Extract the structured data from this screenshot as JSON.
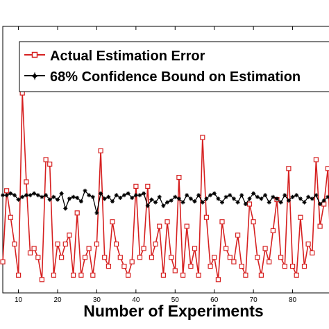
{
  "chart_data": {
    "type": "line",
    "title": "",
    "xlabel": "Number of Experiments",
    "ylabel": "",
    "xlim": [
      6,
      90
    ],
    "ylim": [
      0,
      300
    ],
    "grid": false,
    "legend_position": "top-left",
    "x_ticks": [
      10,
      20,
      30,
      40,
      50,
      60,
      70,
      80
    ],
    "x_tick_labels": [
      "10",
      "20",
      "30",
      "40",
      "50",
      "60",
      "70",
      "80"
    ],
    "series": [
      {
        "name": "Actual Estimation Error",
        "color": "#d62020",
        "marker": "square",
        "x": [
          6,
          7,
          8,
          9,
          10,
          11,
          12,
          13,
          14,
          15,
          16,
          17,
          18,
          19,
          20,
          21,
          22,
          23,
          24,
          25,
          26,
          27,
          28,
          29,
          30,
          31,
          32,
          33,
          34,
          35,
          36,
          37,
          38,
          39,
          40,
          41,
          42,
          43,
          44,
          45,
          46,
          47,
          48,
          49,
          50,
          51,
          52,
          53,
          54,
          55,
          56,
          57,
          58,
          59,
          60,
          61,
          62,
          63,
          64,
          65,
          66,
          67,
          68,
          69,
          70,
          71,
          72,
          73,
          74,
          75,
          76,
          77,
          78,
          79,
          80,
          81,
          82,
          83,
          84,
          85,
          86,
          87,
          88,
          89,
          90
        ],
        "y": [
          35,
          115,
          85,
          55,
          20,
          225,
          125,
          45,
          50,
          40,
          15,
          150,
          145,
          20,
          55,
          40,
          55,
          65,
          20,
          90,
          20,
          40,
          50,
          20,
          55,
          160,
          40,
          30,
          80,
          55,
          40,
          30,
          20,
          35,
          120,
          40,
          50,
          120,
          40,
          55,
          75,
          20,
          80,
          40,
          25,
          130,
          20,
          75,
          30,
          50,
          20,
          175,
          85,
          30,
          40,
          15,
          80,
          50,
          40,
          35,
          65,
          30,
          20,
          100,
          80,
          40,
          20,
          50,
          35,
          70,
          105,
          40,
          30,
          140,
          30,
          20,
          85,
          30,
          55,
          45,
          150,
          75,
          100,
          140,
          5
        ]
      },
      {
        "name": "68% Confidence Bound on Estimation",
        "color": "#000000",
        "marker": "star",
        "x": [
          6,
          7,
          8,
          9,
          10,
          11,
          12,
          13,
          14,
          15,
          16,
          17,
          18,
          19,
          20,
          21,
          22,
          23,
          24,
          25,
          26,
          27,
          28,
          29,
          30,
          31,
          32,
          33,
          34,
          35,
          36,
          37,
          38,
          39,
          40,
          41,
          42,
          43,
          44,
          45,
          46,
          47,
          48,
          49,
          50,
          51,
          52,
          53,
          54,
          55,
          56,
          57,
          58,
          59,
          60,
          61,
          62,
          63,
          64,
          65,
          66,
          67,
          68,
          69,
          70,
          71,
          72,
          73,
          74,
          75,
          76,
          77,
          78,
          79,
          80,
          81,
          82,
          83,
          84,
          85,
          86,
          87,
          88,
          89,
          90
        ],
        "y": [
          110,
          110,
          112,
          110,
          105,
          108,
          110,
          110,
          112,
          110,
          108,
          110,
          105,
          108,
          105,
          112,
          95,
          106,
          108,
          107,
          103,
          115,
          110,
          108,
          90,
          112,
          106,
          108,
          103,
          110,
          107,
          110,
          112,
          107,
          110,
          110,
          112,
          98,
          105,
          102,
          108,
          98,
          102,
          104,
          108,
          106,
          102,
          110,
          106,
          103,
          110,
          102,
          106,
          110,
          112,
          106,
          102,
          108,
          110,
          106,
          102,
          110,
          100,
          106,
          112,
          108,
          106,
          110,
          102,
          108,
          106,
          102,
          110,
          104,
          108,
          110,
          106,
          102,
          108,
          106,
          110,
          100,
          104,
          108,
          105
        ]
      }
    ]
  }
}
